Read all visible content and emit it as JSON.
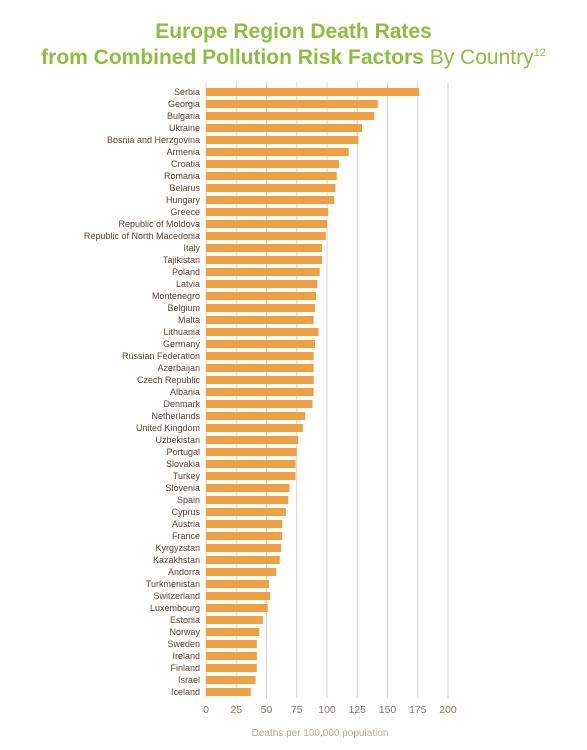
{
  "title_line1": "Europe Region Death Rates",
  "title_line2": "from Combined Pollution Risk Factors",
  "title_suffix": "By Country",
  "title_footnote": "12",
  "chart_data": {
    "type": "bar",
    "orientation": "horizontal",
    "xlabel": "Deaths per 100,000 population",
    "xlim": [
      0,
      200
    ],
    "xticks": [
      0,
      25,
      50,
      75,
      100,
      125,
      150,
      175,
      200
    ],
    "grid": true,
    "bar_color": "#f0a040",
    "grid_color": "#d9d4cf",
    "categories": [
      "Serbia",
      "Georgia",
      "Bulgaria",
      "Ukraine",
      "Bosnia and Herzgovina",
      "Armenia",
      "Croatia",
      "Romania",
      "Belarus",
      "Hungary",
      "Greece",
      "Republic of Moldova",
      "Republic of North Macedonia",
      "Italy",
      "Tajikistan",
      "Poland",
      "Latvia",
      "Montenegro",
      "Belgium",
      "Malta",
      "Lithuania",
      "Germany",
      "Russian Federation",
      "Azerbaijan",
      "Czech Republic",
      "Albania",
      "Denmark",
      "Netherlands",
      "United Kingdom",
      "Uzbekistan",
      "Portugal",
      "Slovakia",
      "Turkey",
      "Slovenia",
      "Spain",
      "Cyprus",
      "Austria",
      "France",
      "Kyrgyzstan",
      "Kazakhstan",
      "Andorra",
      "Turkmenistan",
      "Switzerland",
      "Luxembourg",
      "Estonia",
      "Norway",
      "Sweden",
      "Ireland",
      "Finland",
      "Israel",
      "Iceland"
    ],
    "values": [
      176,
      142,
      139,
      129,
      126,
      118,
      110,
      108,
      107,
      106,
      101,
      100,
      99,
      96,
      96,
      94,
      92,
      91,
      90,
      89,
      93,
      90,
      89,
      89,
      89,
      89,
      88,
      82,
      80,
      76,
      75,
      74,
      74,
      69,
      68,
      66,
      63,
      63,
      62,
      61,
      58,
      52,
      53,
      51,
      47,
      44,
      42,
      42,
      42,
      41,
      37
    ]
  }
}
